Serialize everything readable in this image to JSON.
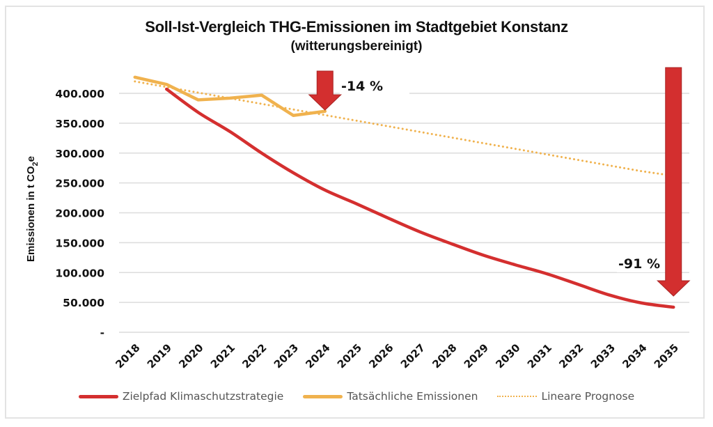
{
  "chart_data": {
    "type": "line",
    "title": "Soll-Ist-Vergleich THG-Emissionen im Stadtgebiet Konstanz",
    "subtitle": "(witterungsbereinigt)",
    "xlabel": "",
    "ylabel": "Emissionen in t CO2e",
    "ylabel_parts": {
      "main": "Emissionen in t CO",
      "sub": "2",
      "tail": "e"
    },
    "ylim": [
      0,
      400000
    ],
    "yticks": [
      0,
      50000,
      100000,
      150000,
      200000,
      250000,
      300000,
      350000,
      400000
    ],
    "ytick_labels": [
      "-",
      "50.000",
      "100.000",
      "150.000",
      "200.000",
      "250.000",
      "300.000",
      "350.000",
      "400.000"
    ],
    "grid": true,
    "categories": [
      "2018",
      "2019",
      "2020",
      "2021",
      "2022",
      "2023",
      "2024",
      "2025",
      "2026",
      "2027",
      "2028",
      "2029",
      "2030",
      "2031",
      "2032",
      "2033",
      "2034",
      "2035"
    ],
    "series": [
      {
        "name": "Zielpfad Klimaschutzstrategie",
        "color": "#d42f2f",
        "style": "solid",
        "values": [
          null,
          407000,
          368000,
          336000,
          300000,
          267000,
          238000,
          215000,
          191000,
          168000,
          148000,
          129000,
          113000,
          98000,
          80000,
          62000,
          49000,
          42000
        ]
      },
      {
        "name": "Tatsächliche Emissionen",
        "color": "#f0b24e",
        "style": "solid",
        "values": [
          427000,
          415000,
          389000,
          392000,
          397000,
          363000,
          370000,
          null,
          null,
          null,
          null,
          null,
          null,
          null,
          null,
          null,
          null,
          null
        ]
      },
      {
        "name": "Lineare Prognose",
        "color": "#f0b24e",
        "style": "dotted",
        "values": [
          420000,
          410600,
          401200,
          391800,
          382400,
          373000,
          363600,
          354200,
          344800,
          335400,
          326000,
          316600,
          307200,
          297800,
          288400,
          279000,
          269600,
          262000
        ]
      }
    ],
    "annotations": [
      {
        "text": "-14 %",
        "category": "2024",
        "type": "down-arrow",
        "color": "#d32f2f"
      },
      {
        "text": "-91 %",
        "category": "2035",
        "type": "down-arrow",
        "color": "#d32f2f"
      }
    ],
    "legend_position": "bottom"
  }
}
